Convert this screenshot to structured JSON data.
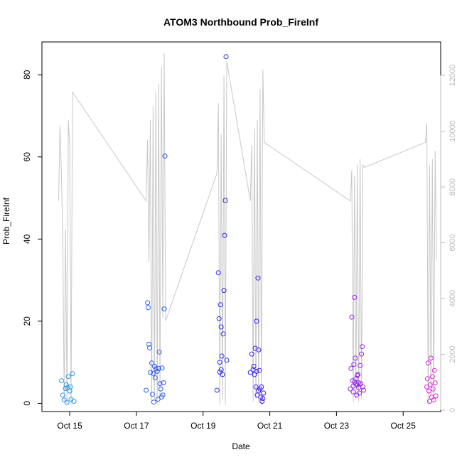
{
  "chart_data": {
    "type": "scatter",
    "title": "ATOM3 Northbound Prob_FireInf",
    "xlabel": "Date",
    "ylabel": "Prob_FireInf",
    "xlim": [
      "2021-10-14T04:00",
      "2021-10-26T03:00"
    ],
    "ylim": [
      -2,
      88
    ],
    "y2lim": [
      -50,
      13200
    ],
    "x_ticks": [
      {
        "label": "Oct 15",
        "value": "2021-10-15"
      },
      {
        "label": "Oct 17",
        "value": "2021-10-17"
      },
      {
        "label": "Oct 19",
        "value": "2021-10-19"
      },
      {
        "label": "Oct 21",
        "value": "2021-10-21"
      },
      {
        "label": "Oct 23",
        "value": "2021-10-23"
      },
      {
        "label": "Oct 25",
        "value": "2021-10-25"
      }
    ],
    "y_ticks": [
      0,
      20,
      40,
      60,
      80
    ],
    "y2_ticks": [
      0,
      2000,
      4000,
      6000,
      8000,
      10000,
      12000
    ],
    "grid": false,
    "legend": "none",
    "colors": {
      "points_start": "#29a9e8",
      "points_mid": "#2f20ee",
      "points_end": "#e623e0",
      "line": "#c8c8c8",
      "axis": "#000000",
      "axis2": "#bbbbbb"
    },
    "series": [
      {
        "kind": "points",
        "axis": "left",
        "points": [
          {
            "x": "2021-10-14T18:00",
            "y": 5.5
          },
          {
            "x": "2021-10-14T19:00",
            "y": 2.0
          },
          {
            "x": "2021-10-14T20:00",
            "y": 0.8
          },
          {
            "x": "2021-10-14T21:00",
            "y": 3.6
          },
          {
            "x": "2021-10-14T21:30",
            "y": 4.5
          },
          {
            "x": "2021-10-14T22:00",
            "y": 0.2
          },
          {
            "x": "2021-10-14T22:30",
            "y": 3.8
          },
          {
            "x": "2021-10-14T23:00",
            "y": 6.5
          },
          {
            "x": "2021-10-15T00:00",
            "y": 3.0
          },
          {
            "x": "2021-10-15T00:30",
            "y": 4.0
          },
          {
            "x": "2021-10-15T01:00",
            "y": 1.0
          },
          {
            "x": "2021-10-15T02:00",
            "y": 7.2
          },
          {
            "x": "2021-10-15T03:00",
            "y": 0.5
          },
          {
            "x": "2021-10-17T07:00",
            "y": 3.2
          },
          {
            "x": "2021-10-17T08:00",
            "y": 24.5
          },
          {
            "x": "2021-10-17T08:30",
            "y": 23.3
          },
          {
            "x": "2021-10-17T09:00",
            "y": 14.4
          },
          {
            "x": "2021-10-17T09:30",
            "y": 13.5
          },
          {
            "x": "2021-10-17T10:00",
            "y": 7.5
          },
          {
            "x": "2021-10-17T11:00",
            "y": 9.8
          },
          {
            "x": "2021-10-17T11:30",
            "y": 2.2
          },
          {
            "x": "2021-10-17T12:00",
            "y": 7.3
          },
          {
            "x": "2021-10-17T12:30",
            "y": 0.3
          },
          {
            "x": "2021-10-17T13:00",
            "y": 9.0
          },
          {
            "x": "2021-10-17T13:30",
            "y": 6.2
          },
          {
            "x": "2021-10-17T14:00",
            "y": 8.4
          },
          {
            "x": "2021-10-17T15:00",
            "y": 7.8
          },
          {
            "x": "2021-10-17T15:30",
            "y": 1.0
          },
          {
            "x": "2021-10-17T16:00",
            "y": 8.5
          },
          {
            "x": "2021-10-17T16:30",
            "y": 12.5
          },
          {
            "x": "2021-10-17T17:00",
            "y": 4.8
          },
          {
            "x": "2021-10-17T17:30",
            "y": 3.5
          },
          {
            "x": "2021-10-17T18:00",
            "y": 1.5
          },
          {
            "x": "2021-10-17T18:30",
            "y": 8.6
          },
          {
            "x": "2021-10-17T19:00",
            "y": 2.0
          },
          {
            "x": "2021-10-17T19:30",
            "y": 5.0
          },
          {
            "x": "2021-10-17T20:00",
            "y": 23.0
          },
          {
            "x": "2021-10-17T20:30",
            "y": 60.2
          },
          {
            "x": "2021-10-19T10:00",
            "y": 3.2
          },
          {
            "x": "2021-10-19T11:00",
            "y": 31.8
          },
          {
            "x": "2021-10-19T11:30",
            "y": 20.6
          },
          {
            "x": "2021-10-19T12:00",
            "y": 7.6
          },
          {
            "x": "2021-10-19T12:30",
            "y": 24.0
          },
          {
            "x": "2021-10-19T13:00",
            "y": 18.6
          },
          {
            "x": "2021-10-19T13:30",
            "y": 11.5
          },
          {
            "x": "2021-10-19T14:00",
            "y": 7.0
          },
          {
            "x": "2021-10-19T14:30",
            "y": 16.9
          },
          {
            "x": "2021-10-19T15:00",
            "y": 27.5
          },
          {
            "x": "2021-10-19T15:30",
            "y": 40.9
          },
          {
            "x": "2021-10-19T16:00",
            "y": 49.4
          },
          {
            "x": "2021-10-19T16:30",
            "y": 84.4
          },
          {
            "x": "2021-10-19T17:00",
            "y": 10.5
          },
          {
            "x": "2021-10-19T13:00",
            "y": 8.2
          },
          {
            "x": "2021-10-19T12:00",
            "y": 10.0
          },
          {
            "x": "2021-10-20T10:00",
            "y": 7.5
          },
          {
            "x": "2021-10-20T11:00",
            "y": 12.0
          },
          {
            "x": "2021-10-20T12:00",
            "y": 8.2
          },
          {
            "x": "2021-10-20T12:30",
            "y": 9.0
          },
          {
            "x": "2021-10-20T13:00",
            "y": 7.0
          },
          {
            "x": "2021-10-20T13:30",
            "y": 13.4
          },
          {
            "x": "2021-10-20T14:00",
            "y": 4.0
          },
          {
            "x": "2021-10-20T14:30",
            "y": 20.0
          },
          {
            "x": "2021-10-20T15:00",
            "y": 2.0
          },
          {
            "x": "2021-10-20T15:30",
            "y": 30.5
          },
          {
            "x": "2021-10-20T16:00",
            "y": 13.0
          },
          {
            "x": "2021-10-20T16:30",
            "y": 8.0
          },
          {
            "x": "2021-10-20T17:00",
            "y": 3.5
          },
          {
            "x": "2021-10-20T17:30",
            "y": 1.5
          },
          {
            "x": "2021-10-20T18:00",
            "y": 4.0
          },
          {
            "x": "2021-10-20T18:30",
            "y": 0.5
          },
          {
            "x": "2021-10-20T19:00",
            "y": 1.2
          },
          {
            "x": "2021-10-20T19:30",
            "y": 2.5
          },
          {
            "x": "2021-10-20T14:30",
            "y": 7.8
          },
          {
            "x": "2021-10-20T16:00",
            "y": 3.0
          },
          {
            "x": "2021-10-23T10:00",
            "y": 3.5
          },
          {
            "x": "2021-10-23T10:30",
            "y": 8.5
          },
          {
            "x": "2021-10-23T11:00",
            "y": 21.0
          },
          {
            "x": "2021-10-23T11:30",
            "y": 5.5
          },
          {
            "x": "2021-10-23T12:00",
            "y": 2.8
          },
          {
            "x": "2021-10-23T12:30",
            "y": 9.5
          },
          {
            "x": "2021-10-23T13:00",
            "y": 25.8
          },
          {
            "x": "2021-10-23T13:30",
            "y": 11.0
          },
          {
            "x": "2021-10-23T14:00",
            "y": 6.0
          },
          {
            "x": "2021-10-23T14:30",
            "y": 2.0
          },
          {
            "x": "2021-10-23T15:00",
            "y": 4.5
          },
          {
            "x": "2021-10-23T15:30",
            "y": 7.0
          },
          {
            "x": "2021-10-23T16:00",
            "y": 5.0
          },
          {
            "x": "2021-10-23T16:30",
            "y": 2.5
          },
          {
            "x": "2021-10-23T17:00",
            "y": 9.2
          },
          {
            "x": "2021-10-23T17:30",
            "y": 4.8
          },
          {
            "x": "2021-10-23T18:00",
            "y": 12.0
          },
          {
            "x": "2021-10-23T18:30",
            "y": 13.8
          },
          {
            "x": "2021-10-23T19:00",
            "y": 4.0
          },
          {
            "x": "2021-10-23T19:30",
            "y": 3.2
          },
          {
            "x": "2021-10-23T12:00",
            "y": 4.2
          },
          {
            "x": "2021-10-23T13:00",
            "y": 5.2
          },
          {
            "x": "2021-10-23T14:00",
            "y": 4.7
          },
          {
            "x": "2021-10-23T15:00",
            "y": 6.8
          },
          {
            "x": "2021-10-23T16:00",
            "y": 3.8
          },
          {
            "x": "2021-10-25T17:00",
            "y": 4.0
          },
          {
            "x": "2021-10-25T17:30",
            "y": 6.0
          },
          {
            "x": "2021-10-25T18:00",
            "y": 9.8
          },
          {
            "x": "2021-10-25T18:30",
            "y": 3.0
          },
          {
            "x": "2021-10-25T19:00",
            "y": 0.5
          },
          {
            "x": "2021-10-25T19:30",
            "y": 4.5
          },
          {
            "x": "2021-10-25T20:00",
            "y": 11.0
          },
          {
            "x": "2021-10-25T20:30",
            "y": 1.5
          },
          {
            "x": "2021-10-25T21:00",
            "y": 6.5
          },
          {
            "x": "2021-10-25T21:30",
            "y": 3.5
          },
          {
            "x": "2021-10-25T22:00",
            "y": 0.8
          },
          {
            "x": "2021-10-25T22:30",
            "y": 8.0
          },
          {
            "x": "2021-10-25T23:00",
            "y": 5.0
          },
          {
            "x": "2021-10-25T23:30",
            "y": 1.8
          }
        ]
      },
      {
        "kind": "line",
        "axis": "right",
        "points": [
          {
            "x": "2021-10-14T16:00",
            "y": 7500
          },
          {
            "x": "2021-10-14T17:00",
            "y": 10200
          },
          {
            "x": "2021-10-14T18:00",
            "y": 8500
          },
          {
            "x": "2021-10-14T19:00",
            "y": 6200
          },
          {
            "x": "2021-10-14T20:00",
            "y": 300
          },
          {
            "x": "2021-10-14T21:00",
            "y": 6500
          },
          {
            "x": "2021-10-14T22:00",
            "y": 200
          },
          {
            "x": "2021-10-14T23:00",
            "y": 10400
          },
          {
            "x": "2021-10-15T00:00",
            "y": 9500
          },
          {
            "x": "2021-10-15T01:00",
            "y": 200
          },
          {
            "x": "2021-10-15T02:00",
            "y": 11400
          },
          {
            "x": "2021-10-17T07:00",
            "y": 7500
          },
          {
            "x": "2021-10-17T08:00",
            "y": 9700
          },
          {
            "x": "2021-10-17T09:00",
            "y": 5300
          },
          {
            "x": "2021-10-17T10:00",
            "y": 10400
          },
          {
            "x": "2021-10-17T11:00",
            "y": 300
          },
          {
            "x": "2021-10-17T12:00",
            "y": 10900
          },
          {
            "x": "2021-10-17T13:00",
            "y": 400
          },
          {
            "x": "2021-10-17T14:00",
            "y": 11400
          },
          {
            "x": "2021-10-17T15:00",
            "y": 200
          },
          {
            "x": "2021-10-17T16:00",
            "y": 11700
          },
          {
            "x": "2021-10-17T17:00",
            "y": 400
          },
          {
            "x": "2021-10-17T18:00",
            "y": 12300
          },
          {
            "x": "2021-10-17T19:00",
            "y": 3300
          },
          {
            "x": "2021-10-17T20:00",
            "y": 12800
          },
          {
            "x": "2021-10-17T21:00",
            "y": 3200
          },
          {
            "x": "2021-10-19T10:00",
            "y": 8500
          },
          {
            "x": "2021-10-19T11:00",
            "y": 11000
          },
          {
            "x": "2021-10-19T12:00",
            "y": 200
          },
          {
            "x": "2021-10-19T13:00",
            "y": 9900
          },
          {
            "x": "2021-10-19T14:00",
            "y": 400
          },
          {
            "x": "2021-10-19T15:00",
            "y": 12000
          },
          {
            "x": "2021-10-19T16:00",
            "y": 200
          },
          {
            "x": "2021-10-19T17:00",
            "y": 12500
          },
          {
            "x": "2021-10-20T10:00",
            "y": 7500
          },
          {
            "x": "2021-10-20T11:00",
            "y": 9500
          },
          {
            "x": "2021-10-20T12:00",
            "y": 300
          },
          {
            "x": "2021-10-20T13:00",
            "y": 10100
          },
          {
            "x": "2021-10-20T14:00",
            "y": 400
          },
          {
            "x": "2021-10-20T15:00",
            "y": 10400
          },
          {
            "x": "2021-10-20T16:00",
            "y": 300
          },
          {
            "x": "2021-10-20T17:00",
            "y": 11500
          },
          {
            "x": "2021-10-20T18:00",
            "y": 200
          },
          {
            "x": "2021-10-20T19:00",
            "y": 12200
          },
          {
            "x": "2021-10-20T20:00",
            "y": 9600
          },
          {
            "x": "2021-10-23T10:00",
            "y": 7500
          },
          {
            "x": "2021-10-23T11:00",
            "y": 8600
          },
          {
            "x": "2021-10-23T12:00",
            "y": 300
          },
          {
            "x": "2021-10-23T13:00",
            "y": 8400
          },
          {
            "x": "2021-10-23T14:00",
            "y": 400
          },
          {
            "x": "2021-10-23T15:00",
            "y": 8800
          },
          {
            "x": "2021-10-23T16:00",
            "y": 300
          },
          {
            "x": "2021-10-23T17:00",
            "y": 9000
          },
          {
            "x": "2021-10-23T18:00",
            "y": 400
          },
          {
            "x": "2021-10-23T19:00",
            "y": 8800
          },
          {
            "x": "2021-10-23T20:00",
            "y": 8700
          },
          {
            "x": "2021-10-25T16:00",
            "y": 9600
          },
          {
            "x": "2021-10-25T17:00",
            "y": 10300
          },
          {
            "x": "2021-10-25T18:00",
            "y": 200
          },
          {
            "x": "2021-10-25T19:00",
            "y": 8800
          },
          {
            "x": "2021-10-25T20:00",
            "y": 500
          },
          {
            "x": "2021-10-25T21:00",
            "y": 9000
          },
          {
            "x": "2021-10-25T22:00",
            "y": 300
          },
          {
            "x": "2021-10-25T23:00",
            "y": 9300
          },
          {
            "x": "2021-10-26T00:00",
            "y": 5400
          }
        ]
      }
    ]
  }
}
